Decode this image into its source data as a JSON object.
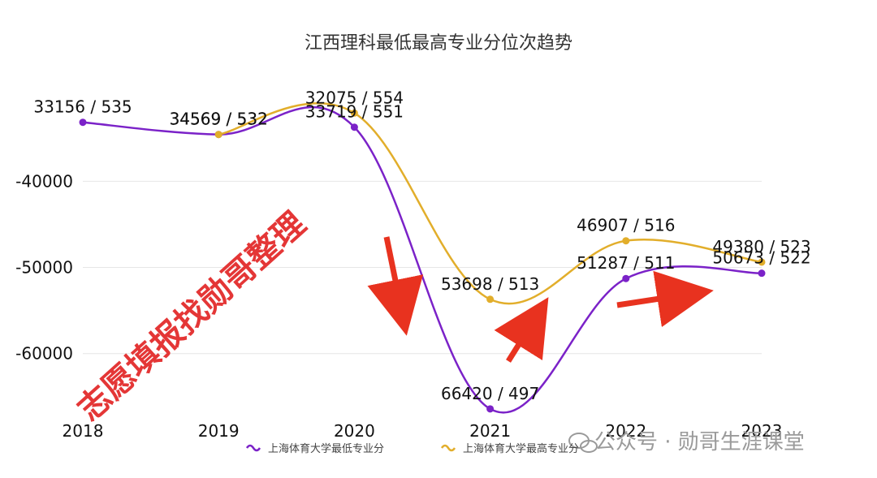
{
  "chart_data": {
    "type": "line",
    "title": "江西理科最低最高专业分位次趋势",
    "categories": [
      "2018",
      "2019",
      "2020",
      "2021",
      "2022",
      "2023"
    ],
    "ylim": [
      -67000,
      -28000
    ],
    "yticks": [
      -40000,
      -50000,
      -60000
    ],
    "y_tick_labels": [
      "-40000",
      "-50000",
      "-60000"
    ],
    "grid": true,
    "legend_position": "bottom",
    "series": [
      {
        "name": "上海体育大学最低专业分",
        "color": "#7b22c8",
        "rank": [
          33156,
          34569,
          33719,
          66420,
          51287,
          50673
        ],
        "score": [
          535,
          532,
          551,
          497,
          511,
          522
        ],
        "labels": [
          "33156 / 535",
          "34569 / 532",
          "33719 / 551",
          "66420 / 497",
          "51287 / 511",
          "50673 / 522"
        ]
      },
      {
        "name": "上海体育大学最高专业分",
        "color": "#e2ae2b",
        "rank": [
          null,
          34569,
          32075,
          53698,
          46907,
          49380
        ],
        "score": [
          null,
          532,
          554,
          513,
          516,
          523
        ],
        "labels": [
          "",
          "34569 / 532",
          "32075 / 554",
          "53698 / 513",
          "46907 / 516",
          "49380 / 523"
        ]
      }
    ]
  },
  "watermark_left": "志愿填报找勋哥整理",
  "watermark_right": "公众号 · 勋哥生涯课堂",
  "colors": {
    "arrow": "#e8321f",
    "grid": "#e6e6e6",
    "watermark_left": "#e43636",
    "watermark_right": "#9a9a9a"
  }
}
